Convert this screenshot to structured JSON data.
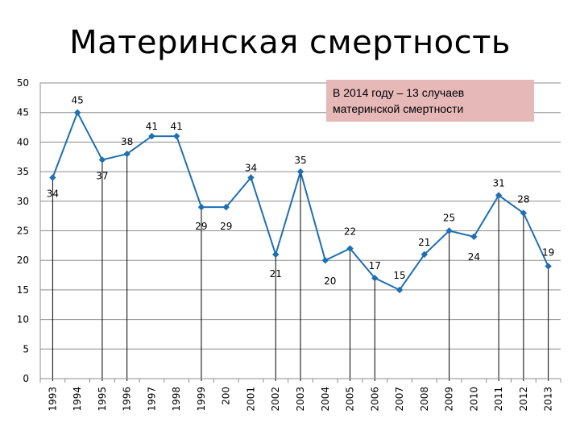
{
  "title": "Материнская смертность",
  "note": {
    "line1": "В 2014 году – 13 случаев",
    "line2": "материнской смертности"
  },
  "chart_data": {
    "type": "line",
    "title": "Материнская смертность",
    "xlabel": "",
    "ylabel": "",
    "categories": [
      "1993",
      "1994",
      "1995",
      "1996",
      "1997",
      "1998",
      "1999",
      "200",
      "2001",
      "2002",
      "2003",
      "2004",
      "2005",
      "2006",
      "2007",
      "2008",
      "2009",
      "2010",
      "2011",
      "2012",
      "2013"
    ],
    "series": [
      {
        "values": [
          34,
          45,
          37,
          38,
          41,
          41,
          29,
          29,
          34,
          21,
          35,
          20,
          22,
          17,
          15,
          21,
          25,
          24,
          31,
          28,
          19
        ],
        "color": "#1f6fb3"
      }
    ],
    "data_labels": [
      "34",
      "45",
      "37",
      "38",
      "41",
      "41",
      "29",
      "29",
      "34",
      "21",
      "35",
      "20",
      "22",
      "17",
      "15",
      "21",
      "25",
      "24",
      "31",
      "28",
      "19"
    ],
    "drop_lines_at": [
      "1993",
      "1995",
      "1996",
      "1999",
      "2002",
      "2003",
      "2005",
      "2006",
      "2009",
      "2011",
      "2012",
      "2013"
    ],
    "ylim": [
      0,
      50
    ],
    "yticks": [
      0,
      5,
      10,
      15,
      20,
      25,
      30,
      35,
      40,
      45,
      50
    ],
    "grid": true,
    "legend": "none"
  }
}
